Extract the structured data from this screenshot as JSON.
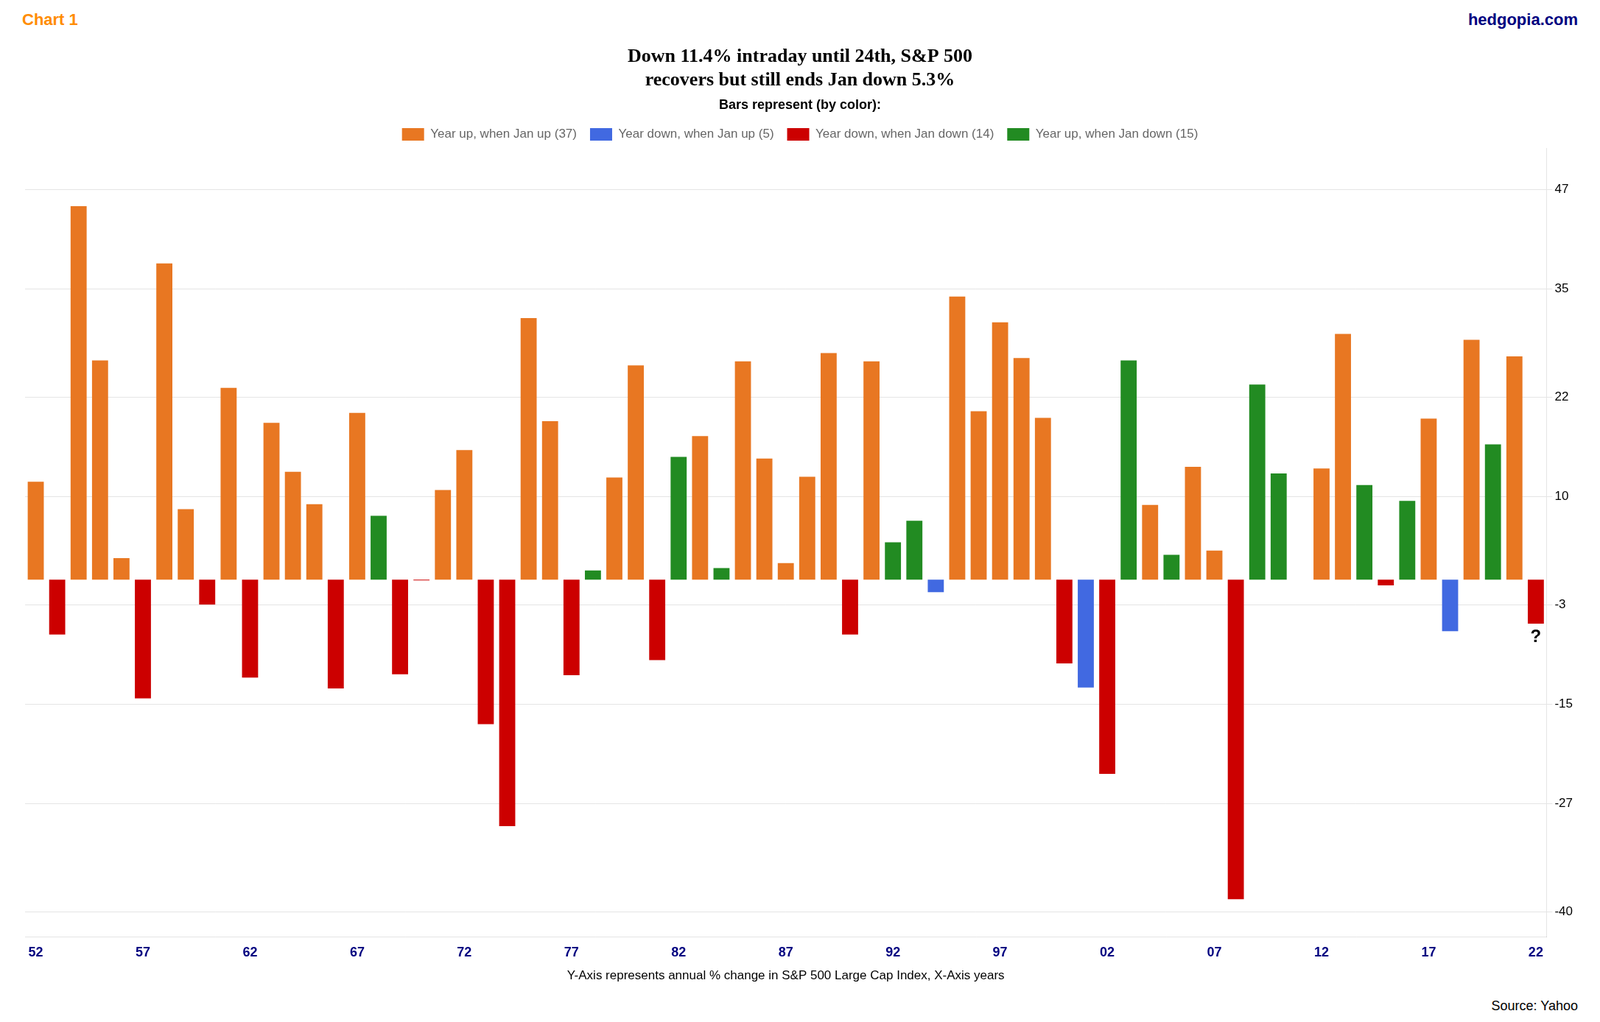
{
  "chart_data": {
    "type": "bar",
    "title": "Down 11.4% intraday until 24th, S&P 500\nrecovers but still ends Jan down 5.3%",
    "xlabel": "Y-Axis represents annual % change in S&P 500 Large Cap Index, X-Axis years",
    "annotations": [
      {
        "text": "Chart 1",
        "color": "#FF8C00"
      },
      {
        "text": "hedgopia.com",
        "color": "#000080"
      },
      {
        "text": "Source: Yahoo"
      },
      {
        "text": "?",
        "x": "22"
      }
    ],
    "legend": "top",
    "legend_title": "Bars represent (by color):",
    "grid": true,
    "ylim": [
      -43,
      52
    ],
    "yticks": [
      47,
      35,
      22,
      10,
      -3,
      -15,
      -27,
      -40
    ],
    "categories": [
      "52",
      null,
      null,
      null,
      null,
      "57",
      null,
      null,
      null,
      null,
      "62",
      null,
      null,
      null,
      null,
      "67",
      null,
      null,
      null,
      null,
      "72",
      null,
      null,
      null,
      null,
      "77",
      null,
      null,
      null,
      null,
      "82",
      null,
      null,
      null,
      null,
      "87",
      null,
      null,
      null,
      null,
      "92",
      null,
      null,
      null,
      null,
      "97",
      null,
      null,
      null,
      null,
      "02",
      null,
      null,
      null,
      null,
      "07",
      null,
      null,
      null,
      null,
      "12",
      null,
      null,
      null,
      null,
      "17",
      null,
      null,
      null,
      null,
      "22"
    ],
    "series": [
      {
        "name": "Year up, when Jan up (37)",
        "color": "#E87722",
        "values": [
          11.8,
          null,
          45.0,
          26.4,
          2.6,
          null,
          38.1,
          8.5,
          null,
          23.1,
          null,
          18.9,
          13.0,
          9.1,
          null,
          20.1,
          null,
          null,
          null,
          10.8,
          15.6,
          null,
          null,
          31.5,
          19.1,
          null,
          null,
          12.3,
          25.8,
          null,
          null,
          17.3,
          null,
          26.3,
          14.6,
          2.0,
          12.4,
          27.3,
          null,
          26.3,
          null,
          null,
          null,
          34.1,
          20.3,
          31.0,
          26.7,
          19.5,
          null,
          null,
          null,
          null,
          9.0,
          null,
          13.6,
          3.5,
          null,
          null,
          null,
          null,
          13.4,
          29.6,
          null,
          null,
          null,
          19.4,
          null,
          28.9,
          null,
          26.9,
          null
        ]
      },
      {
        "name": "Year down, when Jan up (5)",
        "color": "#4169E1",
        "values": [
          null,
          null,
          null,
          null,
          null,
          null,
          null,
          null,
          null,
          null,
          null,
          null,
          null,
          null,
          null,
          null,
          null,
          null,
          null,
          null,
          null,
          null,
          null,
          null,
          null,
          null,
          null,
          null,
          null,
          null,
          null,
          null,
          null,
          null,
          null,
          null,
          null,
          null,
          null,
          null,
          null,
          null,
          -1.5,
          null,
          null,
          null,
          null,
          null,
          null,
          -13.0,
          null,
          null,
          null,
          null,
          null,
          null,
          null,
          null,
          null,
          0.0,
          null,
          null,
          null,
          null,
          null,
          null,
          -6.2,
          null,
          null,
          null,
          null
        ]
      },
      {
        "name": "Year down, when Jan down (14)",
        "color": "#CC0000",
        "values": [
          null,
          -6.6,
          null,
          null,
          null,
          -14.3,
          null,
          null,
          -3.0,
          null,
          -11.8,
          null,
          null,
          null,
          -13.1,
          null,
          null,
          -11.4,
          -0.1,
          null,
          null,
          -17.4,
          -29.7,
          null,
          null,
          -11.5,
          null,
          null,
          null,
          -9.7,
          null,
          null,
          null,
          null,
          null,
          null,
          null,
          null,
          -6.6,
          null,
          null,
          null,
          null,
          null,
          null,
          null,
          null,
          null,
          -10.1,
          null,
          -23.4,
          null,
          null,
          null,
          null,
          null,
          -38.5,
          null,
          null,
          null,
          null,
          null,
          null,
          -0.7,
          null,
          null,
          null,
          null,
          null,
          null,
          -5.3
        ]
      },
      {
        "name": "Year up, when Jan down (15)",
        "color": "#228B22",
        "values": [
          null,
          null,
          null,
          null,
          null,
          null,
          null,
          null,
          null,
          null,
          null,
          null,
          null,
          null,
          null,
          null,
          7.7,
          null,
          null,
          null,
          null,
          null,
          null,
          null,
          null,
          null,
          1.1,
          null,
          null,
          null,
          14.8,
          null,
          1.4,
          null,
          null,
          null,
          null,
          null,
          null,
          null,
          4.5,
          7.1,
          null,
          null,
          null,
          null,
          null,
          null,
          null,
          null,
          null,
          26.4,
          null,
          3.0,
          null,
          null,
          null,
          23.5,
          12.8,
          null,
          null,
          null,
          11.4,
          null,
          9.5,
          null,
          null,
          null,
          16.3,
          null,
          null
        ]
      }
    ]
  }
}
